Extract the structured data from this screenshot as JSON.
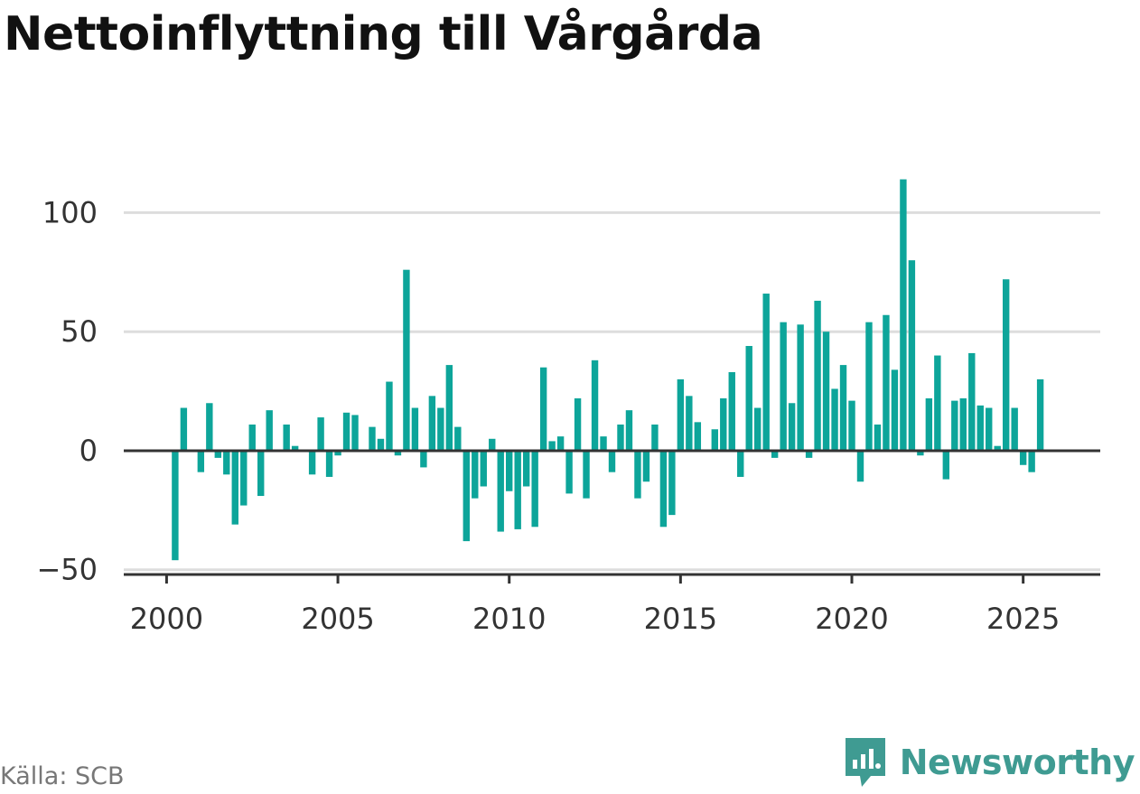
{
  "title": "Nettoinflyttning till Vårgårda",
  "source": "Källa: SCB",
  "brand": {
    "name": "Newsworthy",
    "icon": "newsworthy-logo-icon",
    "color": "#3f9b92"
  },
  "colors": {
    "bar": "#0da59a",
    "grid": "#dddddd",
    "axis": "#333333"
  },
  "chart_data": {
    "type": "bar",
    "y_ticks": [
      -50,
      0,
      50,
      100
    ],
    "y_tick_labels": [
      "−50",
      "0",
      "50",
      "100"
    ],
    "x_ticks": [
      2000,
      2005,
      2010,
      2015,
      2020,
      2025
    ],
    "ylim": [
      -52,
      118
    ],
    "xlim": [
      1998.75,
      2027.25
    ],
    "grid": true,
    "series": [
      {
        "x": [
          2000.25,
          2000.5,
          2000.75,
          2001.0,
          2001.25,
          2001.5,
          2001.75,
          2002.0,
          2002.25,
          2002.5,
          2002.75,
          2003.0,
          2003.25,
          2003.5,
          2003.75,
          2004.0,
          2004.25,
          2004.5,
          2004.75,
          2005.0,
          2005.25,
          2005.5,
          2005.75,
          2006.0,
          2006.25,
          2006.5,
          2006.75,
          2007.0,
          2007.25,
          2007.5,
          2007.75,
          2008.0,
          2008.25,
          2008.5,
          2008.75,
          2009.0,
          2009.25,
          2009.5,
          2009.75,
          2010.0,
          2010.25,
          2010.5,
          2010.75,
          2011.0,
          2011.25,
          2011.5,
          2011.75,
          2012.0,
          2012.25,
          2012.5,
          2012.75,
          2013.0,
          2013.25,
          2013.5,
          2013.75,
          2014.0,
          2014.25,
          2014.5,
          2014.75,
          2015.0,
          2015.25,
          2015.5,
          2015.75,
          2016.0,
          2016.25,
          2016.5,
          2016.75,
          2017.0,
          2017.25,
          2017.5,
          2017.75,
          2018.0,
          2018.25,
          2018.5,
          2018.75,
          2019.0,
          2019.25,
          2019.5,
          2019.75,
          2020.0,
          2020.25,
          2020.5,
          2020.75,
          2021.0,
          2021.25,
          2021.5,
          2021.75,
          2022.0,
          2022.25,
          2022.5,
          2022.75,
          2023.0,
          2023.25,
          2023.5,
          2023.75,
          2024.0,
          2024.25,
          2024.5,
          2024.75,
          2025.0,
          2025.25,
          2025.5
        ],
        "values": [
          -46,
          18,
          0,
          -9,
          20,
          -3,
          -10,
          -31,
          -23,
          11,
          -19,
          17,
          0,
          11,
          2,
          0,
          -10,
          14,
          -11,
          -2,
          16,
          15,
          0,
          10,
          5,
          29,
          -2,
          76,
          18,
          -7,
          23,
          18,
          36,
          10,
          -38,
          -20,
          -15,
          5,
          -34,
          -17,
          -33,
          -15,
          -32,
          35,
          4,
          6,
          -18,
          22,
          -20,
          38,
          6,
          -9,
          11,
          17,
          -20,
          -13,
          11,
          -32,
          -27,
          30,
          23,
          12,
          0,
          9,
          22,
          33,
          -11,
          44,
          18,
          66,
          -3,
          54,
          20,
          53,
          -3,
          63,
          50,
          26,
          36,
          21,
          -13,
          54,
          11,
          57,
          34,
          114,
          80,
          -2,
          22,
          40,
          -12,
          21,
          22,
          41,
          19,
          18,
          2,
          72,
          18,
          -6,
          -9,
          30
        ]
      }
    ]
  }
}
